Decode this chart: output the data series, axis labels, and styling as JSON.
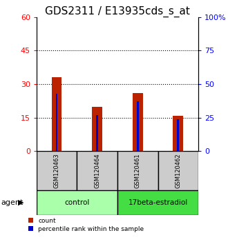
{
  "title": "GDS2311 / E13935cds_s_at",
  "samples": [
    "GSM120463",
    "GSM120464",
    "GSM120461",
    "GSM120462"
  ],
  "groups": [
    "control",
    "control",
    "17beta-estradiol",
    "17beta-estradiol"
  ],
  "counts": [
    33,
    20,
    26,
    16
  ],
  "percentile_ranks_pct": [
    43,
    27,
    37,
    24
  ],
  "left_ylim": [
    0,
    60
  ],
  "left_yticks": [
    0,
    15,
    30,
    45,
    60
  ],
  "right_ylim": [
    0,
    100
  ],
  "right_yticks": [
    0,
    25,
    50,
    75,
    100
  ],
  "bar_color": "#bb2200",
  "percentile_color": "#0000cc",
  "bar_width": 0.25,
  "title_fontsize": 11,
  "tick_fontsize": 8,
  "control_color": "#aaffaa",
  "estradiol_color": "#44dd44",
  "sample_box_color": "#cccccc",
  "agent_label": "agent",
  "legend_count_label": "count",
  "legend_percentile_label": "percentile rank within the sample"
}
